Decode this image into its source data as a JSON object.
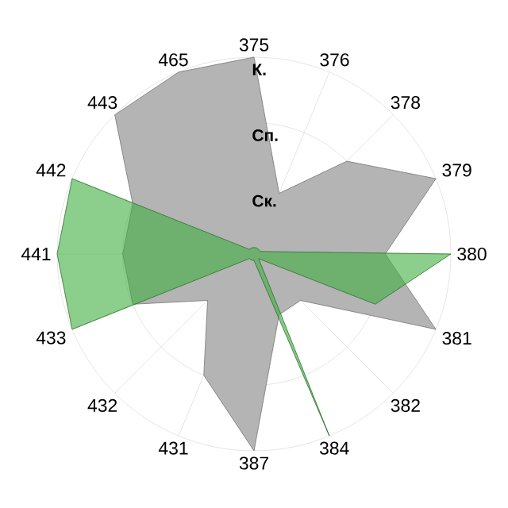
{
  "chart_data": {
    "type": "radar",
    "categories": [
      "375",
      "376",
      "378",
      "379",
      "380",
      "381",
      "382",
      "384",
      "387",
      "431",
      "432",
      "433",
      "441",
      "442",
      "443",
      "465"
    ],
    "series": [
      {
        "color": "#b4b4b4",
        "values": [
          3,
          1,
          2,
          3,
          2,
          3,
          1,
          1,
          3,
          2,
          1,
          2,
          2,
          2,
          3,
          3
        ]
      },
      {
        "color": "#3fae3f",
        "values": [
          0.1,
          0.1,
          0.1,
          0.1,
          3,
          2,
          0.1,
          3,
          0.1,
          0.1,
          0.1,
          3,
          3,
          3,
          0.1,
          0.1
        ]
      }
    ],
    "ylim": [
      0,
      3
    ],
    "yticks": [
      {
        "value": 1,
        "label": "Ск."
      },
      {
        "value": 2,
        "label": "Сп."
      },
      {
        "value": 3,
        "label": "К."
      }
    ],
    "grid": true
  }
}
